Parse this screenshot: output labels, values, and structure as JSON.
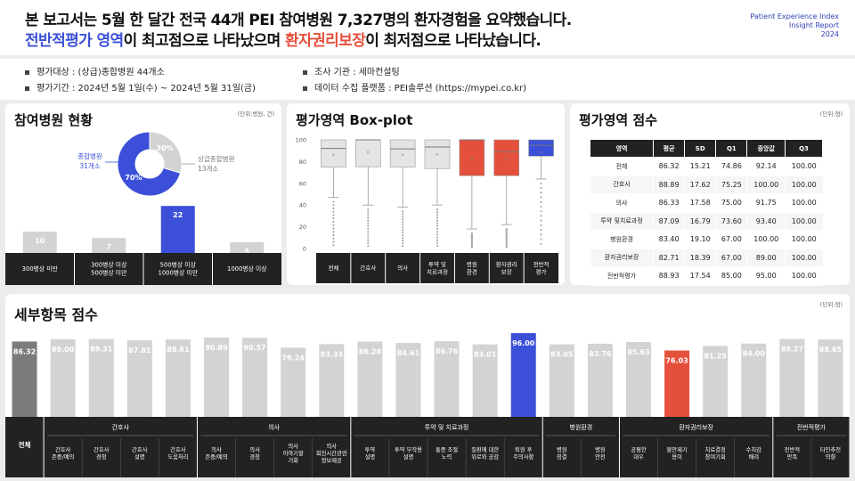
{
  "header": {
    "line1": "본 보고서는 5월 한 달간 전국 44개 PEI 참여병원 7,327명의 환자경험을 요약했습니다.",
    "line2_pre": "",
    "line2_blue": "전반적평가 영역",
    "line2_mid": "이 최고점으로 나타났으며 ",
    "line2_red": "환자권리보장",
    "line2_post": "이 최저점으로 나타났습니다.",
    "brand_1": "Patient Experience Index",
    "brand_2": "Insight Report",
    "brand_3": "2024"
  },
  "info": {
    "target": "평가대상 : (상급)종합병원 44개소",
    "period": "평가기간 : 2024년 5월 1일(수) ~ 2024년 5월 31일(금)",
    "agency": "조사 기관 : 세마컨설팅",
    "platform": "데이터 수집 플랫폼 : PEI솔루션 (https://mypei.co.kr)"
  },
  "colors": {
    "blue": "#3b4fd8",
    "red": "#e5503c",
    "gray": "#d3d3d3",
    "dark": "#222222",
    "darkgray": "#7b7b7b"
  },
  "hospitals": {
    "title": "참여병원 현황",
    "unit": "(단위:병원, 건)",
    "pie_label_general": "종합병원",
    "pie_label_general_n": "31개소",
    "pie_label_tertiary": "상급종합병원",
    "pie_label_tertiary_n": "13개소",
    "pie_pct_general": "70%",
    "pie_pct_tertiary": "30%",
    "bar_categories": [
      "300병상 미만",
      "300병상 이상\n500병상 미만",
      "500병상 이상\n1000병상 미만",
      "1000병상 이상"
    ]
  },
  "boxplot": {
    "title": "평가영역 Box-plot",
    "categories": [
      "전체",
      "간호사",
      "의사",
      "투약 및\n치료과정",
      "병원\n환경",
      "환자권리\n보장",
      "전반적\n평가"
    ],
    "y_ticks": [
      "0",
      "20",
      "40",
      "60",
      "80",
      "100"
    ]
  },
  "stats": {
    "title": "평가영역 점수",
    "unit": "(단위:점)",
    "headers": [
      "영역",
      "평균",
      "SD",
      "Q1",
      "중앙값",
      "Q3"
    ],
    "rows": [
      [
        "전체",
        "86.32",
        "15.21",
        "74.86",
        "92.14",
        "100.00"
      ],
      [
        "간호사",
        "88.89",
        "17.62",
        "75.25",
        "100.00",
        "100.00"
      ],
      [
        "의사",
        "86.33",
        "17.58",
        "75.00",
        "91.75",
        "100.00"
      ],
      [
        "투약 및치료과정",
        "87.09",
        "16.79",
        "73.60",
        "93.40",
        "100.00"
      ],
      [
        "병원환경",
        "83.40",
        "19.10",
        "67.00",
        "100.00",
        "100.00"
      ],
      [
        "환자권리보장",
        "82.71",
        "18.39",
        "67.00",
        "89.00",
        "100.00"
      ],
      [
        "전반적평가",
        "88.93",
        "17.54",
        "85.00",
        "95.00",
        "100.00"
      ]
    ]
  },
  "detail": {
    "title": "세부항목 점수",
    "unit": "(단위:점)",
    "total_label": "전체",
    "groups": [
      {
        "name": "간호사",
        "items": [
          "간호사\n존중/예의",
          "간호사\n경청",
          "간호사\n설명",
          "간호사\n도움처리"
        ]
      },
      {
        "name": "의사",
        "items": [
          "의사\n존중/예의",
          "의사\n경청",
          "의사\n이야기할\n기회",
          "의사\n회진시간관련\n정보제공"
        ]
      },
      {
        "name": "투약 및 치료과정",
        "items": [
          "투약\n설명",
          "투약 부작용\n설명",
          "통증 조절\n노력",
          "질환에 대한\n위로와 공감",
          "퇴원 후\n주의사항"
        ]
      },
      {
        "name": "병원환경",
        "items": [
          "병원\n청결",
          "병원\n안전"
        ]
      },
      {
        "name": "환자권리보장",
        "items": [
          "공평한\n대우",
          "불만제기\n용이",
          "치료결정\n참여기회",
          "수치감\n배려"
        ]
      },
      {
        "name": "전반적평가",
        "items": [
          "전반적\n만족",
          "타인추천\n의향"
        ]
      }
    ]
  },
  "chart_data": [
    {
      "type": "pie",
      "title": "참여병원 현황",
      "labels": [
        "종합병원",
        "상급종합병원"
      ],
      "values": [
        31,
        13
      ],
      "percents": [
        70,
        30
      ]
    },
    {
      "type": "bar",
      "categories": [
        "300병상 미만",
        "300병상 이상 500병상 미만",
        "500병상 이상 1000병상 미만",
        "1000병상 이상"
      ],
      "values": [
        10,
        7,
        22,
        5
      ],
      "highlight_index": 2,
      "ylim": [
        0,
        25
      ]
    },
    {
      "type": "box",
      "title": "평가영역 Box-plot",
      "categories": [
        "전체",
        "간호사",
        "의사",
        "투약 및 치료과정",
        "병원 환경",
        "환자권리 보장",
        "전반적 평가"
      ],
      "q1": [
        74.86,
        75.25,
        75.0,
        73.6,
        67.0,
        67.0,
        85.0
      ],
      "median": [
        92.14,
        100.0,
        91.75,
        93.4,
        100.0,
        89.0,
        95.0
      ],
      "q3": [
        100,
        100,
        100,
        100,
        100,
        100,
        100
      ],
      "mean": [
        86.32,
        88.89,
        86.33,
        87.09,
        83.4,
        82.71,
        88.93
      ],
      "whisker_low": [
        47.0,
        40.0,
        38.0,
        40.0,
        18.0,
        22.0,
        64.0
      ],
      "highlight": {
        "병원 환경": "red",
        "환자권리 보장": "red",
        "전반적 평가": "blue"
      },
      "ylim": [
        0,
        100
      ],
      "y_ticks": [
        0,
        20,
        40,
        60,
        80,
        100
      ]
    },
    {
      "type": "bar",
      "title": "세부항목 점수",
      "categories": [
        "전체",
        "간호사 존중/예의",
        "간호사 경청",
        "간호사 설명",
        "간호사 도움처리",
        "의사 존중/예의",
        "의사 경청",
        "의사 이야기할 기회",
        "의사 회진시간관련 정보제공",
        "투약 설명",
        "투약 부작용 설명",
        "통증 조절 노력",
        "질환에 대한 위로와 공감",
        "퇴원 후 주의사항",
        "병원 청결",
        "병원 안전",
        "공평한 대우",
        "불만제기 용이",
        "치료결정 참여기회",
        "수치감 배려",
        "전반적 만족",
        "타인추천 의향"
      ],
      "values": [
        86.32,
        89.0,
        89.31,
        87.81,
        88.61,
        90.89,
        90.57,
        79.24,
        83.33,
        86.28,
        84.61,
        86.76,
        83.01,
        96.0,
        83.05,
        83.76,
        85.63,
        76.03,
        81.25,
        84.0,
        89.27,
        88.65
      ],
      "highlight": {
        "전체": "darkgray",
        "퇴원 후 주의사항": "blue",
        "불만제기 용이": "red"
      }
    }
  ]
}
